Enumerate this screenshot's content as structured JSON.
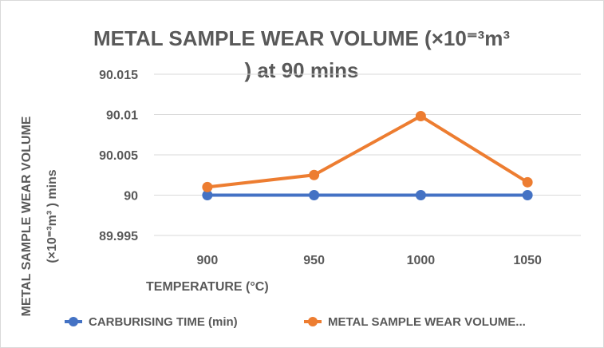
{
  "chart_data": {
    "type": "line",
    "title_line1": "METAL SAMPLE WEAR VOLUME (×10⁼³m³",
    "title_line2": ") at 90 mins",
    "xlabel": "TEMPERATURE (°C)",
    "ylabel_line1": "METAL SAMPLE WEAR VOLUME",
    "ylabel_line2": "(×10⁼³m³ ) mins",
    "categories": [
      "900",
      "950",
      "1000",
      "1050"
    ],
    "ylim": [
      89.995,
      90.015
    ],
    "yticks": [
      89.995,
      90,
      90.005,
      90.01,
      90.015
    ],
    "ytick_labels": [
      "89.995",
      "90",
      "90.005",
      "90.01",
      "90.015"
    ],
    "grid": true,
    "legend_position": "bottom",
    "series": [
      {
        "name": "CARBURISING TIME (min)",
        "color": "#4472c4",
        "values": [
          90,
          90,
          90,
          90
        ]
      },
      {
        "name": "METAL SAMPLE WEAR VOLUME...",
        "color": "#ed7d31",
        "values": [
          90.001,
          90.0025,
          90.0098,
          90.0016
        ]
      }
    ]
  }
}
